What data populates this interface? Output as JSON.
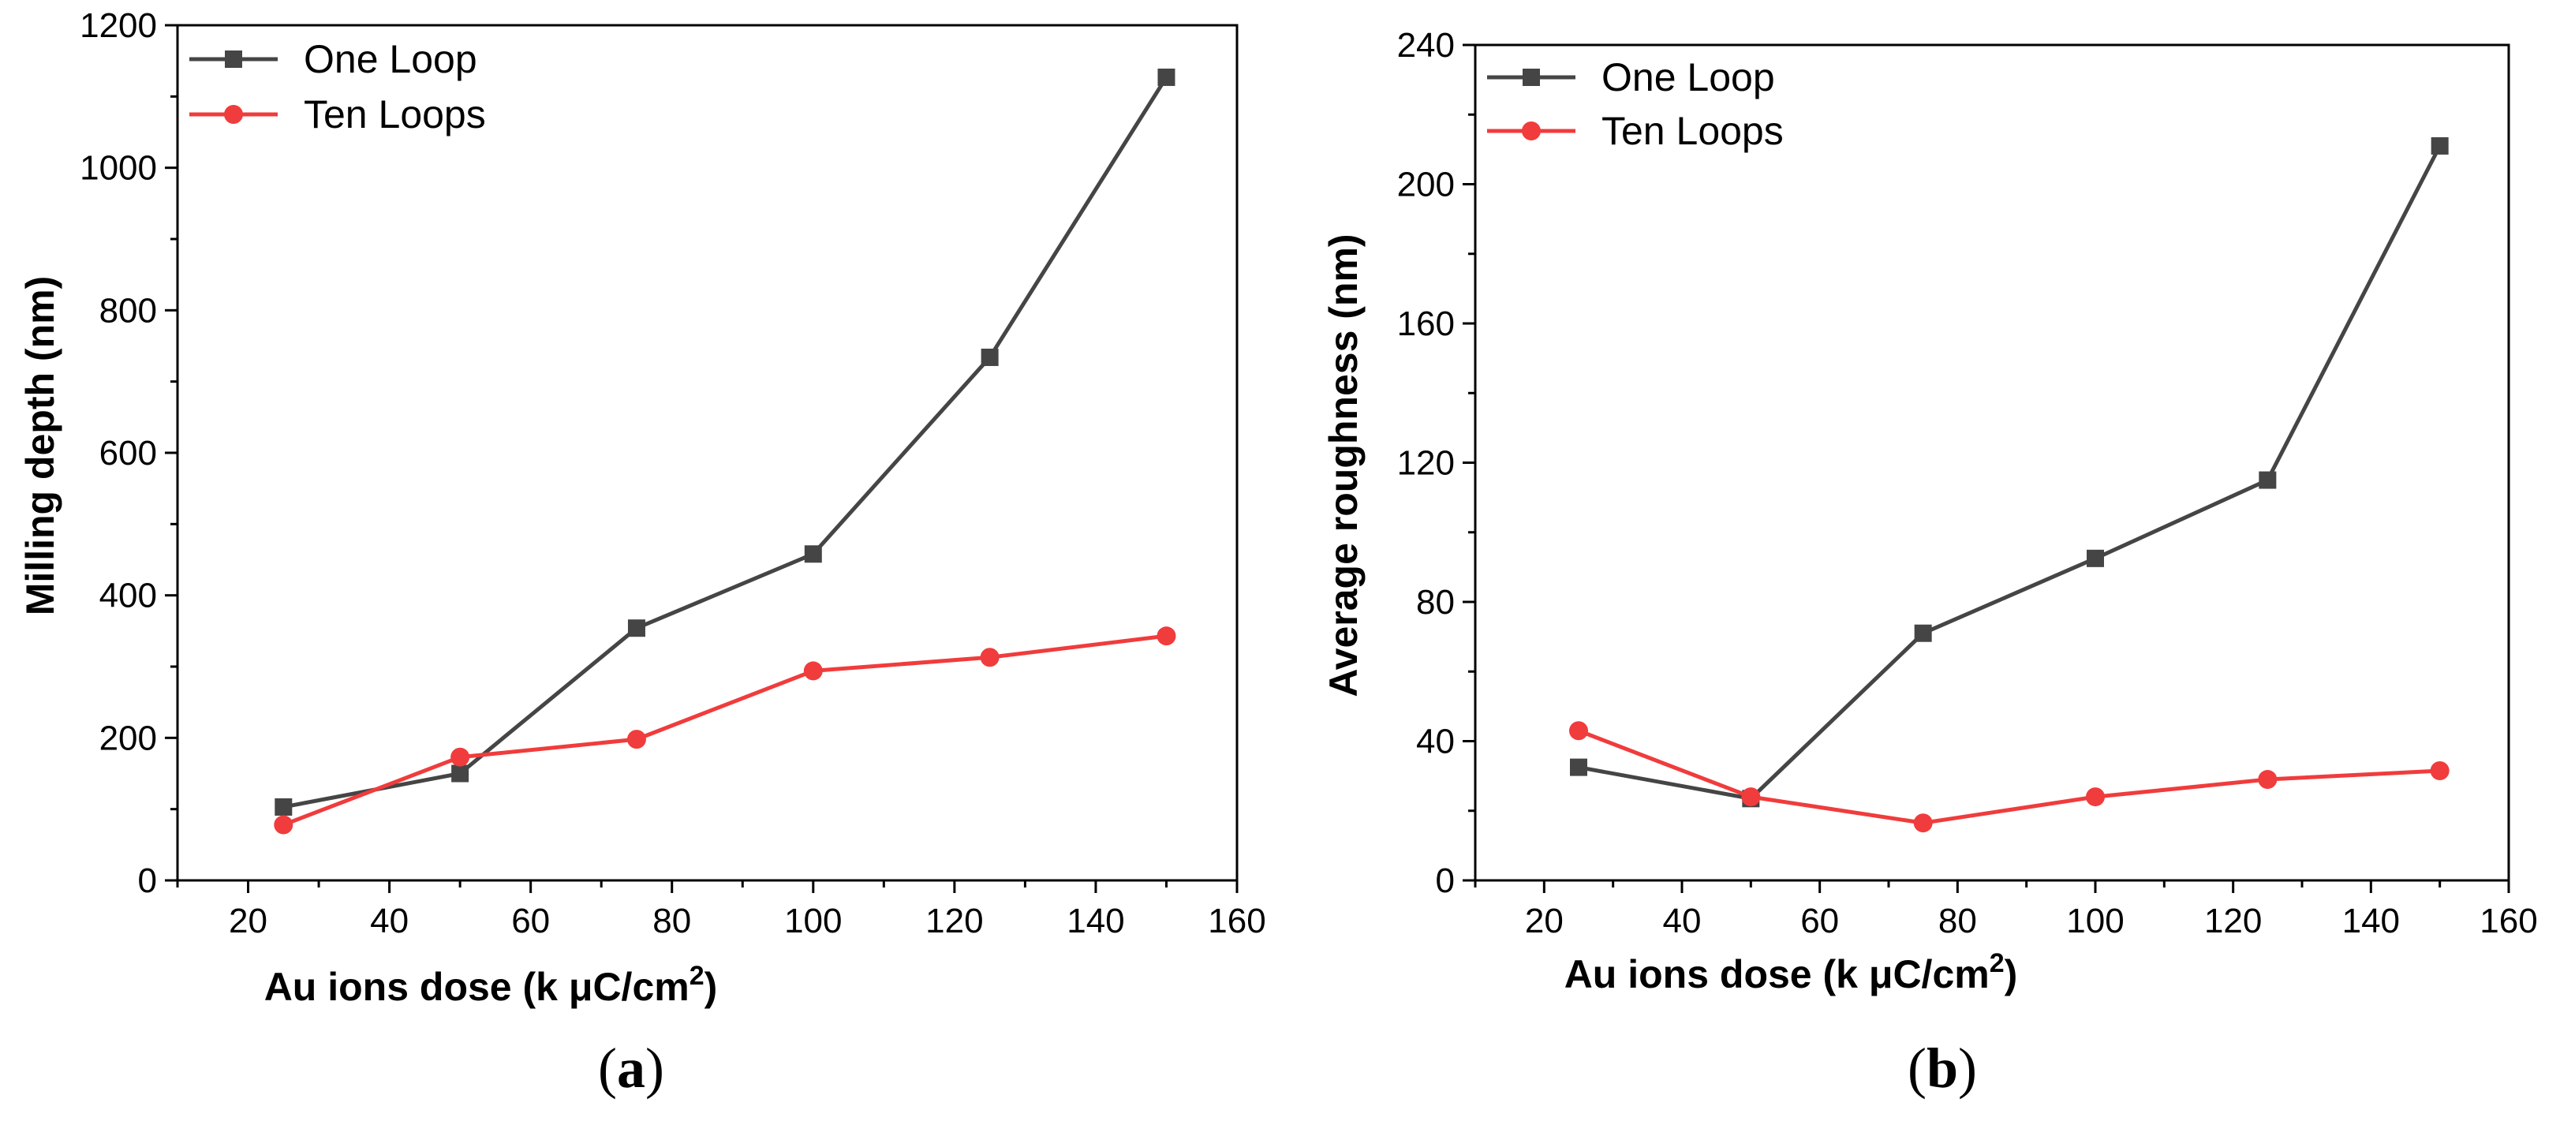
{
  "chart_data": [
    {
      "type": "line",
      "panel_label": "a",
      "xlabel": "Au ions dose (k μC/cm",
      "xlabel_sup": "2",
      "xlabel_end": ")",
      "ylabel": "Milling depth (nm)",
      "xlim": [
        10,
        160
      ],
      "ylim": [
        0,
        1200
      ],
      "xticks": [
        20,
        40,
        60,
        80,
        100,
        120,
        140,
        160
      ],
      "yticks": [
        0,
        200,
        400,
        600,
        800,
        1000,
        1200
      ],
      "legend_position": "top-left",
      "series": [
        {
          "name": "One Loop",
          "color": "#454545",
          "marker": "square",
          "x": [
            25,
            50,
            75,
            100,
            125,
            150
          ],
          "y": [
            103,
            150,
            354,
            458,
            734,
            1127
          ]
        },
        {
          "name": "Ten Loops",
          "color": "#f03c3c",
          "marker": "circle",
          "x": [
            25,
            50,
            75,
            100,
            125,
            150
          ],
          "y": [
            78,
            173,
            198,
            294,
            313,
            343
          ]
        }
      ]
    },
    {
      "type": "line",
      "panel_label": "b",
      "xlabel": "Au ions dose (k μC/cm",
      "xlabel_sup": "2",
      "xlabel_end": ")",
      "ylabel": "Average roughness (nm)",
      "xlim": [
        10,
        160
      ],
      "ylim": [
        0,
        240
      ],
      "xticks": [
        20,
        40,
        60,
        80,
        100,
        120,
        140,
        160
      ],
      "yticks": [
        0,
        40,
        80,
        120,
        160,
        200,
        240
      ],
      "legend_position": "top-left",
      "series": [
        {
          "name": "One Loop",
          "color": "#454545",
          "marker": "square",
          "x": [
            25,
            50,
            75,
            100,
            125,
            150
          ],
          "y": [
            32.5,
            23.5,
            71,
            92.5,
            115,
            211
          ]
        },
        {
          "name": "Ten Loops",
          "color": "#f03c3c",
          "marker": "circle",
          "x": [
            25,
            50,
            75,
            100,
            125,
            150
          ],
          "y": [
            43,
            24,
            16.5,
            24,
            29,
            31.5
          ]
        }
      ]
    }
  ]
}
